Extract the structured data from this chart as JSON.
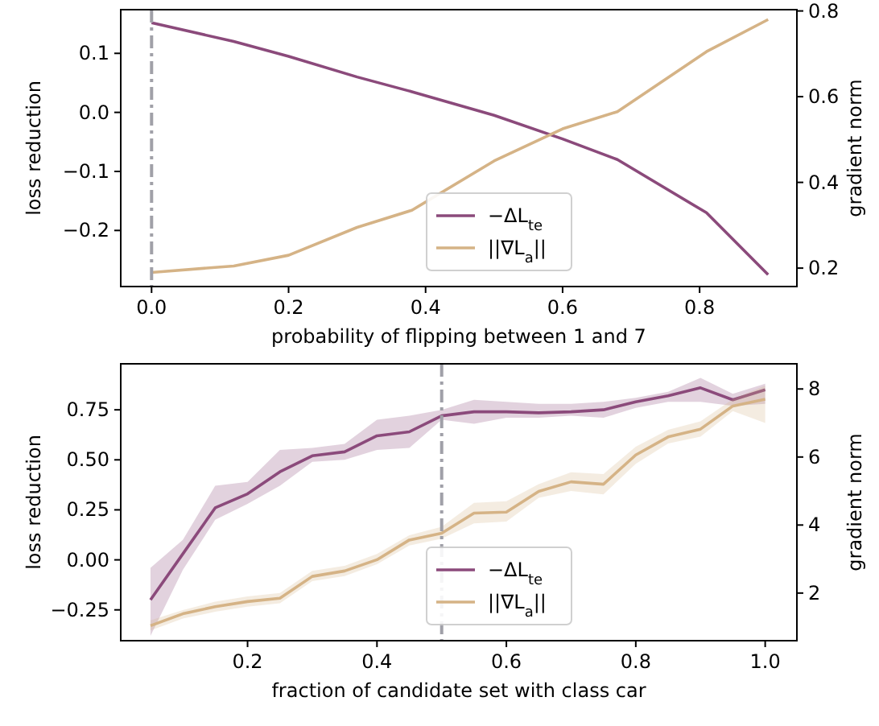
{
  "chart_data": [
    {
      "type": "line",
      "xlabel": "probability of flipping between 1 and 7",
      "ylabel": "loss reduction",
      "y2label": "gradient norm",
      "legend": "bottom",
      "grid": false,
      "x": [
        0,
        0.12,
        0.2,
        0.3,
        0.38,
        0.5,
        0.6,
        0.68,
        0.81,
        0.9
      ],
      "xlim": [
        -0.045,
        0.942
      ],
      "xticks": [
        {
          "value": 0,
          "label": "0.0"
        },
        0.2,
        0.4,
        0.6,
        0.8
      ],
      "ylim": [
        -0.295,
        0.174
      ],
      "yticks": [
        {
          "value": -0.2,
          "label": "−0.2"
        },
        {
          "value": -0.1,
          "label": "−0.1"
        },
        {
          "value": 0,
          "label": "0.0"
        },
        0.1
      ],
      "y2lim": [
        0.157,
        0.803
      ],
      "y2ticks": [
        0.2,
        0.4,
        0.6,
        0.8
      ],
      "series": [
        {
          "name": "−ΔL$_{te}$",
          "color": "#8b4a7b",
          "values": [
            0.152,
            0.12,
            0.095,
            0.06,
            0.035,
            -0.005,
            -0.045,
            -0.08,
            -0.17,
            -0.275
          ]
        },
        {
          "name": "||∇L$_{a}$||",
          "color": "#d5b386",
          "axis": "y2",
          "values": [
            0.19,
            0.205,
            0.23,
            0.295,
            0.335,
            0.45,
            0.525,
            0.565,
            0.705,
            0.78
          ]
        }
      ],
      "ref_lines": [
        {
          "axis": "x",
          "value": 0,
          "color": "#a0a0a8"
        }
      ]
    },
    {
      "type": "line",
      "xlabel": "fraction of candidate set with class car",
      "ylabel": "loss reduction",
      "y2label": "gradient norm",
      "legend": "bottom",
      "grid": false,
      "x": [
        0.05,
        0.1,
        0.15,
        0.2,
        0.25,
        0.3,
        0.35,
        0.4,
        0.45,
        0.5,
        0.55,
        0.6,
        0.65,
        0.7,
        0.75,
        0.8,
        0.85,
        0.9,
        0.95,
        1.0
      ],
      "xlim": [
        0.004,
        1.049
      ],
      "xticks": [
        0.2,
        0.4,
        0.6,
        0.8,
        {
          "value": 1,
          "label": "1.0"
        }
      ],
      "ylim": [
        -0.404,
        0.98
      ],
      "yticks": [
        {
          "value": -0.25,
          "label": "−0.25"
        },
        {
          "value": 0,
          "label": "0.00"
        },
        0.25,
        {
          "value": 0.5,
          "label": "0.50"
        },
        0.75
      ],
      "y2lim": [
        0.6,
        8.74
      ],
      "y2ticks": [
        2,
        4,
        6,
        8
      ],
      "series": [
        {
          "name": "−ΔL$_{te}$",
          "color": "#8b4a7b",
          "values": [
            -0.2,
            0.03,
            0.26,
            0.33,
            0.44,
            0.52,
            0.54,
            0.62,
            0.64,
            0.72,
            0.74,
            0.74,
            0.735,
            0.74,
            0.75,
            0.79,
            0.82,
            0.86,
            0.8,
            0.85
          ],
          "lower": [
            -0.38,
            -0.05,
            0.2,
            0.28,
            0.37,
            0.49,
            0.5,
            0.55,
            0.56,
            0.7,
            0.68,
            0.71,
            0.71,
            0.72,
            0.71,
            0.76,
            0.79,
            0.79,
            0.77,
            0.78
          ],
          "upper": [
            -0.04,
            0.1,
            0.37,
            0.39,
            0.55,
            0.56,
            0.58,
            0.7,
            0.72,
            0.75,
            0.8,
            0.79,
            0.78,
            0.78,
            0.79,
            0.81,
            0.84,
            0.91,
            0.83,
            0.88
          ]
        },
        {
          "name": "||∇L$_{a}$||",
          "color": "#d5b386",
          "axis": "y2",
          "values": [
            1.04,
            1.39,
            1.6,
            1.75,
            1.85,
            2.49,
            2.65,
            2.98,
            3.56,
            3.76,
            4.35,
            4.38,
            4.99,
            5.27,
            5.2,
            6.06,
            6.59,
            6.82,
            7.5,
            7.7
          ],
          "lower": [
            0.9,
            1.25,
            1.45,
            1.6,
            1.7,
            2.35,
            2.5,
            2.85,
            3.4,
            3.6,
            4.05,
            4.1,
            4.8,
            5.0,
            4.9,
            5.8,
            6.4,
            6.6,
            7.35,
            7.0
          ],
          "upper": [
            1.2,
            1.5,
            1.75,
            1.9,
            2.0,
            2.65,
            2.8,
            3.15,
            3.7,
            3.95,
            4.65,
            4.7,
            5.2,
            5.55,
            5.5,
            6.3,
            6.8,
            7.05,
            7.7,
            8.1
          ]
        }
      ],
      "ref_lines": [
        {
          "axis": "x",
          "value": 0.5,
          "color": "#a0a0a8"
        }
      ]
    }
  ]
}
